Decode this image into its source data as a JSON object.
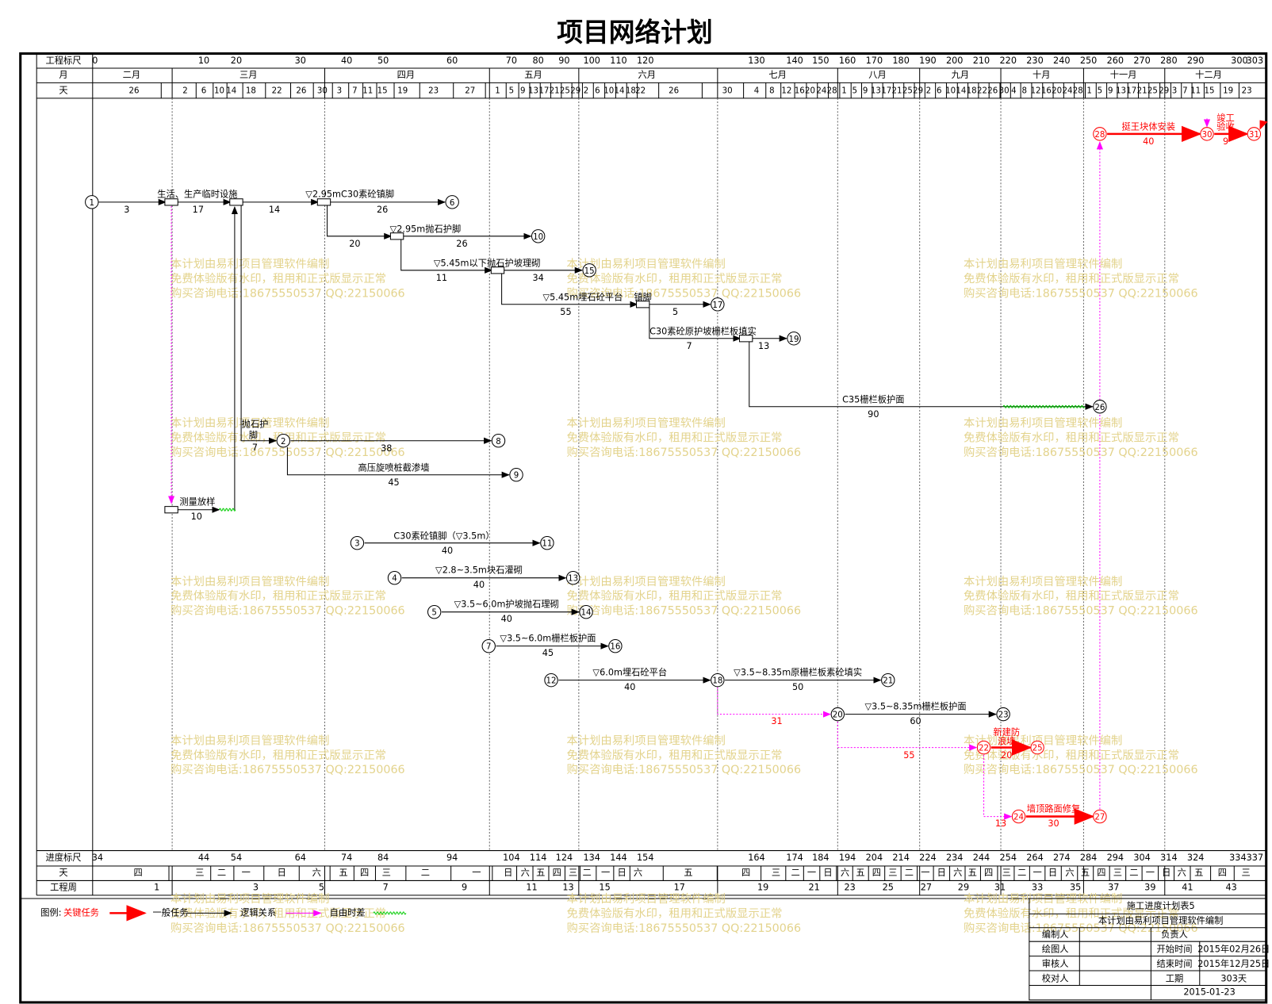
{
  "title": "项目网络计划",
  "header": {
    "labels": [
      "工程标尺",
      "月",
      "天"
    ],
    "scale": [
      0,
      10,
      20,
      30,
      40,
      50,
      60,
      70,
      80,
      90,
      100,
      110,
      120,
      130,
      140,
      150,
      160,
      170,
      180,
      190,
      200,
      210,
      220,
      230,
      240,
      250,
      260,
      270,
      280,
      290,
      300,
      303
    ],
    "months": [
      "二月",
      "三月",
      "四月",
      "五月",
      "六月",
      "七月",
      "八月",
      "九月",
      "十月",
      "十一月",
      "十二月"
    ],
    "days": [
      26,
      2,
      6,
      10,
      14,
      18,
      22,
      26,
      30,
      3,
      7,
      11,
      15,
      19,
      23,
      27,
      1,
      5,
      9,
      13,
      17,
      21,
      25,
      29,
      2,
      6,
      10,
      14,
      18,
      22,
      26,
      30,
      4,
      8,
      12,
      16,
      20,
      24,
      28,
      1,
      5,
      9,
      13,
      17,
      21,
      25,
      29,
      2,
      6,
      10,
      14,
      18,
      22,
      26,
      30,
      4,
      8,
      12,
      16,
      20,
      24,
      28,
      1,
      5,
      9,
      13,
      17,
      21,
      25,
      29,
      3,
      7,
      11,
      15,
      19,
      23
    ]
  },
  "footer": {
    "labels": [
      "进度标尺",
      "天",
      "工程周"
    ],
    "scale": [
      34,
      44,
      54,
      64,
      74,
      84,
      94,
      104,
      114,
      124,
      134,
      144,
      154,
      164,
      174,
      184,
      194,
      204,
      214,
      224,
      234,
      244,
      254,
      264,
      274,
      284,
      294,
      304,
      314,
      324,
      334,
      337
    ],
    "weekdays": [
      "四",
      "三",
      "二",
      "一",
      "日",
      "六",
      "五",
      "四",
      "三",
      "二",
      "一",
      "日",
      "六",
      "五",
      "四",
      "三",
      "二",
      "一",
      "日",
      "六",
      "五",
      "四",
      "三",
      "二",
      "一",
      "日",
      "六",
      "五",
      "四",
      "三",
      "二",
      "一",
      "日",
      "六",
      "五",
      "四",
      "三",
      "二",
      "一",
      "日",
      "六",
      "五",
      "四",
      "三",
      "二",
      "一",
      "日",
      "六",
      "五",
      "四",
      "三"
    ],
    "weeks": [
      1,
      3,
      5,
      7,
      9,
      11,
      13,
      15,
      17,
      19,
      21,
      23,
      25,
      27,
      29,
      31,
      33,
      35,
      37,
      39,
      41,
      43
    ]
  },
  "nodes": [
    1,
    6,
    10,
    15,
    17,
    19,
    26,
    2,
    8,
    9,
    3,
    11,
    4,
    13,
    5,
    14,
    7,
    16,
    12,
    18,
    21,
    20,
    23,
    22,
    25,
    24,
    27,
    28,
    30,
    31
  ],
  "activities": [
    {
      "duration": 3
    },
    {
      "name": "生活、生产临时设施",
      "duration": 17
    },
    {
      "duration": 14
    },
    {
      "name": "▽2.95mC30素砼镇脚",
      "duration": 26
    },
    {
      "duration": 20
    },
    {
      "name": "▽2.95m抛石护脚",
      "duration": 26
    },
    {
      "duration": 11
    },
    {
      "name": "▽5.45m以下抛石护坡理砌",
      "duration": 34
    },
    {
      "name": "▽5.45m埋石砼平台",
      "duration": 55
    },
    {
      "name": "镇脚",
      "duration": 5
    },
    {
      "name": "C30素砼原护坡栅栏板填实",
      "duration": 7
    },
    {
      "duration": 13
    },
    {
      "name": "C35栅栏板护面",
      "duration": 90
    },
    {
      "name": [
        "抛石护",
        "脚"
      ],
      "duration": 7
    },
    {
      "duration": 38
    },
    {
      "name": "高压旋喷桩截渗墙",
      "duration": 45
    },
    {
      "name": "测量放样",
      "duration": 10
    },
    {
      "name": "C30素砼镇脚（▽3.5m）",
      "duration": 40
    },
    {
      "name": "▽2.8~3.5m块石灌砌",
      "duration": 40
    },
    {
      "name": "▽3.5~6.0m护坡抛石理砌",
      "duration": 40
    },
    {
      "name": "▽3.5~6.0m栅栏板护面",
      "duration": 45
    },
    {
      "name": "▽6.0m埋石砼平台",
      "duration": 40
    },
    {
      "name": "▽3.5~8.35m原栅栏板素砼填实",
      "duration": 50
    },
    {
      "duration": 31
    },
    {
      "name": "▽3.5~8.35m栅栏板护面",
      "duration": 60
    },
    {
      "duration": 55
    },
    {
      "name": [
        "新建防",
        "浪墙"
      ],
      "duration": 20
    },
    {
      "duration": 13
    },
    {
      "name": "墙顶路面修复",
      "duration": 30
    },
    {
      "name": "挺王块体安装",
      "duration": 40
    },
    {
      "name": [
        "竣工",
        "验收"
      ],
      "duration": 9
    }
  ],
  "legend": {
    "title": "图例:",
    "items": [
      "关键任务",
      "一般任务",
      "逻辑关系",
      "自由时差"
    ]
  },
  "title_block": {
    "title": "施工进度计划表5",
    "subtitle": "本计划由易利项目管理软件编制",
    "rows": [
      [
        "编制人",
        "负责人",
        ""
      ],
      [
        "绘图人",
        "开始时间",
        "2015年02月26日"
      ],
      [
        "审核人",
        "结束时间",
        "2015年12月25日"
      ],
      [
        "校对人",
        "工期",
        "303天"
      ]
    ],
    "date": "2015-01-23"
  },
  "watermark": [
    "本计划由易利项目管理软件编制",
    "免费体验版有水印，租用和正式版显示正常",
    "购买咨询电话:18675550537 QQ:22150066"
  ]
}
